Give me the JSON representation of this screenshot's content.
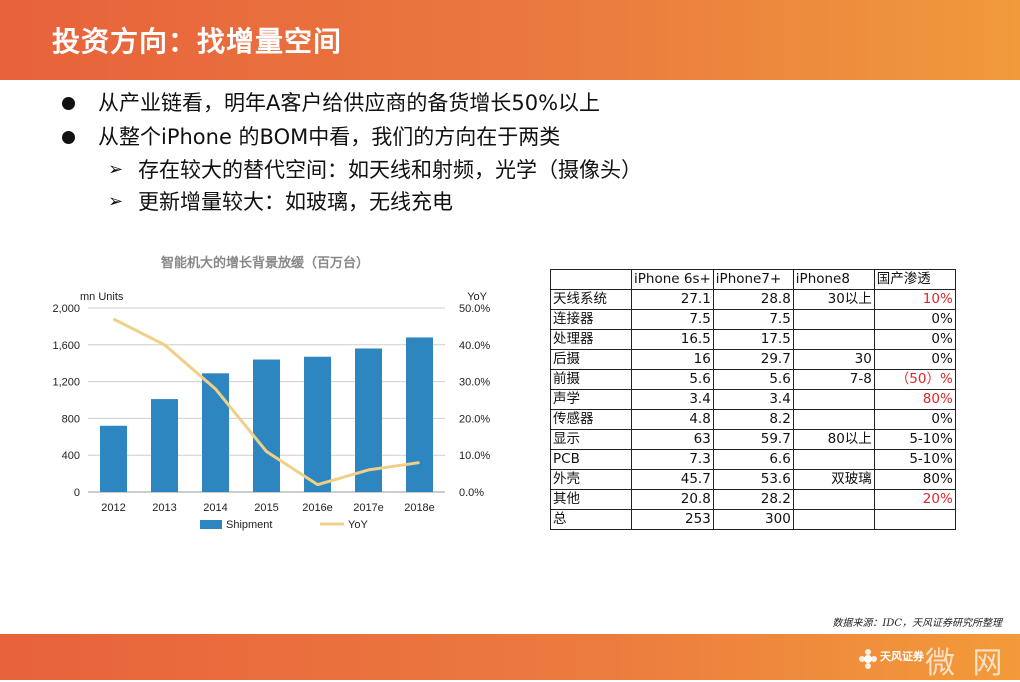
{
  "header": {
    "title": "投资方向：找增量空间"
  },
  "bullets": [
    {
      "text": "从产业链看，明年A客户给供应商的备货增长50%以上"
    },
    {
      "text": "从整个iPhone 的BOM中看，我们的方向在于两类"
    }
  ],
  "subbullets": [
    {
      "text": "存在较大的替代空间：如天线和射频，光学（摄像头）"
    },
    {
      "text": "更新增量较大：如玻璃，无线充电"
    }
  ],
  "chart_data": {
    "type": "bar",
    "title": "智能机大的增长背景放缓（百万台）",
    "categories": [
      "2012",
      "2013",
      "2014",
      "2015",
      "2016e",
      "2017e",
      "2018e"
    ],
    "series": [
      {
        "name": "Shipment",
        "type": "bar",
        "axis": "left",
        "values": [
          720,
          1010,
          1290,
          1440,
          1470,
          1560,
          1680
        ],
        "color": "#2e86c1"
      },
      {
        "name": "YoY",
        "type": "line",
        "axis": "right",
        "values": [
          47.0,
          40.0,
          28.0,
          11.0,
          2.0,
          6.0,
          8.0
        ],
        "color": "#f0cf86"
      }
    ],
    "ylabel": "mn Units",
    "y2label": "YoY",
    "ylim": [
      0,
      2000
    ],
    "yticks": [
      "0",
      "400",
      "800",
      "1,200",
      "1,600",
      "2,000"
    ],
    "y2lim": [
      0,
      50
    ],
    "y2ticks": [
      "0.0%",
      "10.0%",
      "20.0%",
      "30.0%",
      "40.0%",
      "50.0%"
    ],
    "grid": true,
    "legend": "bottom"
  },
  "table": {
    "header": [
      "",
      "iPhone 6s+",
      "iPhone7+",
      "iPhone8",
      "国产渗透"
    ],
    "rows": [
      {
        "cells": [
          "天线系统",
          "27.1",
          "28.8",
          "30以上",
          "10%"
        ],
        "red": true
      },
      {
        "cells": [
          "连接器",
          "7.5",
          "7.5",
          "",
          "0%"
        ],
        "red": false
      },
      {
        "cells": [
          "处理器",
          "16.5",
          "17.5",
          "",
          "0%"
        ],
        "red": false
      },
      {
        "cells": [
          "后摄",
          "16",
          "29.7",
          "30",
          "0%"
        ],
        "red": false
      },
      {
        "cells": [
          "前摄",
          "5.6",
          "5.6",
          "7-8",
          "（50）%"
        ],
        "red": true
      },
      {
        "cells": [
          "声学",
          "3.4",
          "3.4",
          "",
          "80%"
        ],
        "red": true
      },
      {
        "cells": [
          "传感器",
          "4.8",
          "8.2",
          "",
          "0%"
        ],
        "red": false
      },
      {
        "cells": [
          "显示",
          "63",
          "59.7",
          "80以上",
          "5-10%"
        ],
        "red": false
      },
      {
        "cells": [
          "PCB",
          "7.3",
          "6.6",
          "",
          "5-10%"
        ],
        "red": false
      },
      {
        "cells": [
          "外壳",
          "45.7",
          "53.6",
          "双玻璃",
          "80%"
        ],
        "red": false
      },
      {
        "cells": [
          "其他",
          "20.8",
          "28.2",
          "",
          "20%"
        ],
        "red": true
      },
      {
        "cells": [
          "总",
          "253",
          "300",
          "",
          ""
        ],
        "red": false
      }
    ]
  },
  "source": "数据来源：IDC，天风证券研究所整理",
  "brand": {
    "logo_text": "天风证券",
    "watermark": "微 网"
  },
  "colors": {
    "header": "#e8623c",
    "bar": "#2e86c1",
    "line": "#f0cf86",
    "red": "#e0262b"
  }
}
